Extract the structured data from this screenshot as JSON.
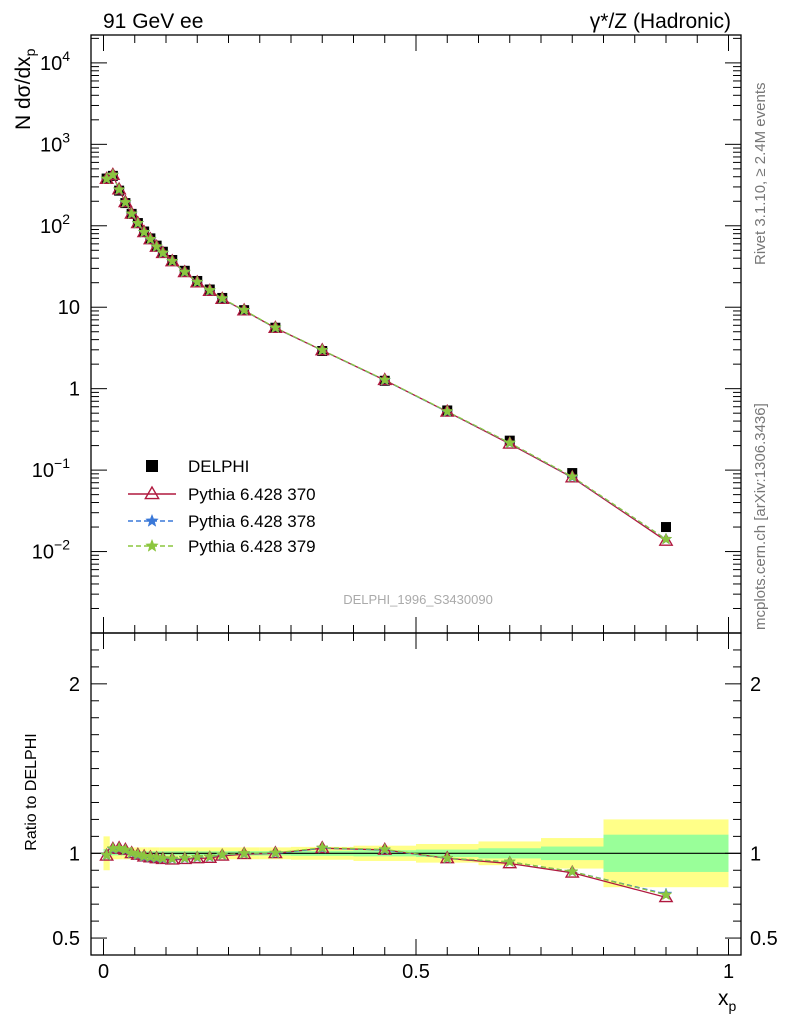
{
  "header": {
    "left": "91 GeV ee",
    "right": "γ*/Z (Hadronic)"
  },
  "side_labels": {
    "rivet": "Rivet 3.1.10, ≥ 2.4M events",
    "mcplots": "mcplots.cern.ch [arXiv:1306.3436]"
  },
  "watermark": "DELPHI_1996_S3430090",
  "colors": {
    "data": "#000000",
    "p370": "#b0193f",
    "p378": "#3a78d8",
    "p379": "#8cc63f",
    "band_inner": "#99ff99",
    "band_outer": "#ffff88"
  },
  "chart_data": [
    {
      "type": "scatter",
      "title": "",
      "ylabel": "N dσ/dx_p",
      "yscale": "log",
      "ylim": [
        0.001,
        22000
      ],
      "xlim": [
        -0.02,
        1.02
      ],
      "y_ticks": [
        "10^-2",
        "10^-1",
        "1",
        "10",
        "10^2",
        "10^3",
        "10^4"
      ],
      "legend_position": "left-middle",
      "legend": [
        "DELPHI",
        "Pythia 6.428 370",
        "Pythia 6.428 378",
        "Pythia 6.428 379"
      ],
      "x": [
        0.005,
        0.015,
        0.025,
        0.035,
        0.045,
        0.055,
        0.065,
        0.075,
        0.085,
        0.095,
        0.11,
        0.13,
        0.15,
        0.17,
        0.19,
        0.225,
        0.275,
        0.35,
        0.45,
        0.55,
        0.65,
        0.75,
        0.9
      ],
      "series": [
        {
          "name": "DELPHI",
          "values": [
            380,
            410,
            270,
            190,
            140,
            108,
            85,
            70,
            57,
            48,
            38,
            28,
            21,
            16.5,
            13,
            9.2,
            5.6,
            2.9,
            1.25,
            0.54,
            0.23,
            0.092,
            0.02
          ]
        },
        {
          "name": "Pythia 6.428 370",
          "values": [
            375,
            420,
            278,
            194,
            140,
            107,
            83,
            68,
            55,
            46,
            36.5,
            26.8,
            20.1,
            15.8,
            12.6,
            9.1,
            5.55,
            2.95,
            1.27,
            0.52,
            0.21,
            0.081,
            0.0135
          ]
        },
        {
          "name": "Pythia 6.428 378",
          "values": [
            376,
            420,
            277,
            193,
            140,
            107,
            83,
            68,
            55.2,
            46.3,
            36.7,
            27,
            20.3,
            16,
            12.7,
            9.15,
            5.58,
            2.96,
            1.27,
            0.52,
            0.215,
            0.082,
            0.0142
          ]
        },
        {
          "name": "Pythia 6.428 379",
          "values": [
            377,
            421,
            278,
            194,
            140.5,
            107.5,
            83.5,
            68.5,
            55.5,
            46.5,
            36.8,
            27.1,
            20.4,
            16.1,
            12.8,
            9.2,
            5.6,
            2.97,
            1.28,
            0.525,
            0.216,
            0.083,
            0.0142
          ]
        }
      ]
    },
    {
      "type": "line",
      "title": "",
      "xlabel": "x_p",
      "ylabel": "Ratio to DELPHI",
      "ylim": [
        0.4,
        2.3
      ],
      "y_ticks": [
        "0.5",
        "1",
        "2"
      ],
      "x_ticks": [
        "0",
        "0.5",
        "1"
      ],
      "x": [
        0.005,
        0.015,
        0.025,
        0.035,
        0.045,
        0.055,
        0.065,
        0.075,
        0.085,
        0.095,
        0.11,
        0.13,
        0.15,
        0.17,
        0.19,
        0.225,
        0.275,
        0.35,
        0.45,
        0.55,
        0.65,
        0.75,
        0.9
      ],
      "series": [
        {
          "name": "Pythia 6.428 370",
          "values": [
            0.985,
            1.025,
            1.03,
            1.02,
            1.0,
            0.99,
            0.98,
            0.975,
            0.97,
            0.965,
            0.962,
            0.965,
            0.97,
            0.972,
            0.985,
            0.995,
            1.0,
            1.03,
            1.02,
            0.97,
            0.94,
            0.885,
            0.74
          ]
        },
        {
          "name": "Pythia 6.428 378",
          "values": [
            0.988,
            1.025,
            1.028,
            1.018,
            1.0,
            0.99,
            0.98,
            0.976,
            0.972,
            0.968,
            0.966,
            0.97,
            0.975,
            0.978,
            0.99,
            0.998,
            1.0,
            1.03,
            1.02,
            0.97,
            0.95,
            0.892,
            0.76
          ]
        },
        {
          "name": "Pythia 6.428 379",
          "values": [
            0.99,
            1.028,
            1.03,
            1.02,
            1.003,
            0.993,
            0.983,
            0.979,
            0.975,
            0.97,
            0.968,
            0.972,
            0.977,
            0.98,
            0.992,
            1.0,
            1.003,
            1.033,
            1.023,
            0.972,
            0.95,
            0.892,
            0.755
          ]
        }
      ],
      "uncertainty_bands": {
        "edges": [
          0.0,
          0.01,
          0.02,
          0.03,
          0.04,
          0.05,
          0.06,
          0.07,
          0.08,
          0.09,
          0.1,
          0.12,
          0.14,
          0.16,
          0.18,
          0.2,
          0.25,
          0.3,
          0.4,
          0.5,
          0.6,
          0.7,
          0.8,
          1.0
        ],
        "inner": [
          0.025,
          0.012,
          0.012,
          0.012,
          0.012,
          0.012,
          0.012,
          0.012,
          0.012,
          0.012,
          0.012,
          0.012,
          0.012,
          0.012,
          0.012,
          0.013,
          0.013,
          0.015,
          0.018,
          0.022,
          0.03,
          0.04,
          0.11
        ],
        "outer": [
          0.1,
          0.035,
          0.035,
          0.035,
          0.035,
          0.035,
          0.035,
          0.035,
          0.035,
          0.035,
          0.035,
          0.035,
          0.035,
          0.035,
          0.035,
          0.035,
          0.035,
          0.038,
          0.045,
          0.055,
          0.07,
          0.09,
          0.2
        ]
      }
    }
  ]
}
